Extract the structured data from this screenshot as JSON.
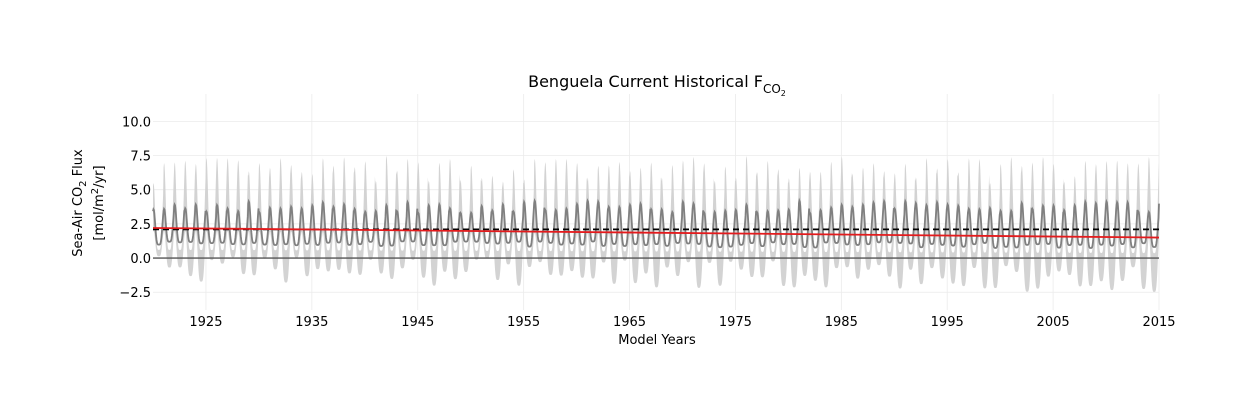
{
  "chart_data": {
    "type": "line",
    "title": {
      "main": "Benguela Current Historical F",
      "subscript": "CO",
      "sub_subscript": "2"
    },
    "xlabel": "Model Years",
    "ylabel": {
      "line1_prefix": "Sea-Air CO",
      "line1_sub": "2",
      "line1_suffix": " Flux",
      "line2_prefix": "[mol/m",
      "line2_sup": "2",
      "line2_suffix": "/yr]"
    },
    "xlim": [
      1920,
      2015
    ],
    "ylim": [
      -3.8,
      12
    ],
    "x_ticks": [
      1925,
      1935,
      1945,
      1955,
      1965,
      1975,
      1985,
      1995,
      2005,
      2015
    ],
    "x_tick_labels": [
      "1925",
      "1935",
      "1945",
      "1955",
      "1965",
      "1975",
      "1985",
      "1995",
      "2005",
      "2015"
    ],
    "y_ticks": [
      -2.5,
      0.0,
      2.5,
      5.0,
      7.5,
      10.0
    ],
    "y_tick_labels": [
      "−2.5",
      "0.0",
      "2.5",
      "5.0",
      "7.5",
      "10.0"
    ],
    "grid": true,
    "series": [
      {
        "role": "ensemble-envelope",
        "color": "#d3d3d3",
        "x_range": [
          1920,
          2015
        ],
        "upper_peak_range": [
          5.5,
          7.5
        ],
        "lower_trough_range": [
          -1.8,
          0.3
        ]
      },
      {
        "role": "ensemble-mean-seasonal-cycle",
        "color": "#808080",
        "x_range": [
          1920,
          2015
        ],
        "peak_range": [
          3.3,
          4.2
        ],
        "trough_range": [
          0.9,
          1.3
        ]
      },
      {
        "role": "initial-mean-reference",
        "color": "#000000",
        "style": "dashed",
        "x": [
          1920,
          2015
        ],
        "y": [
          2.1,
          2.1
        ]
      },
      {
        "role": "linear-trend",
        "color": "#e41a1c",
        "x": [
          1920,
          2015
        ],
        "y": [
          2.2,
          1.5
        ]
      },
      {
        "role": "zero-line",
        "color": "#555555",
        "x": [
          1920,
          2015
        ],
        "y": [
          0.0,
          0.0
        ]
      }
    ]
  }
}
